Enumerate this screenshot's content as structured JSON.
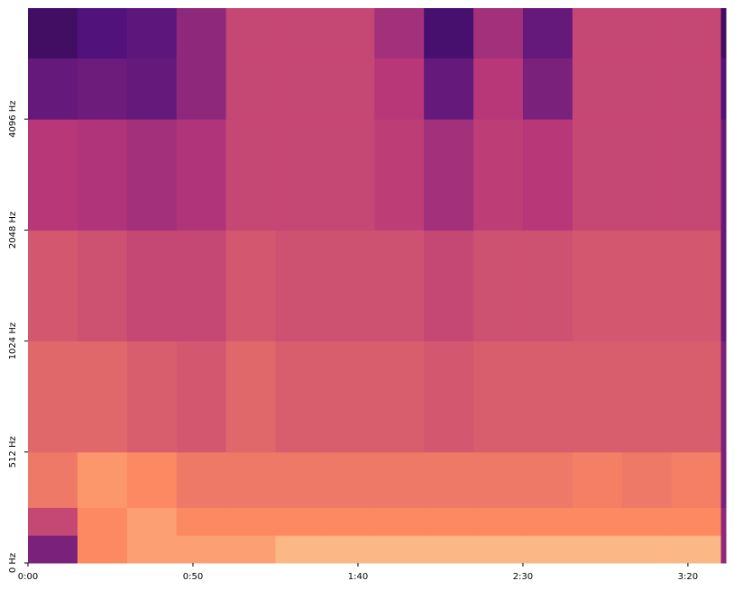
{
  "chart_data": {
    "type": "heatmap",
    "xbins": [
      0,
      15,
      30,
      45,
      60,
      75,
      90,
      105,
      120,
      135,
      150,
      165,
      180,
      195,
      210,
      211.5
    ],
    "ybins": [
      0,
      128,
      256,
      512,
      1024,
      2048,
      4096,
      6000,
      8192
    ],
    "z": [
      [
        0.35,
        0.75,
        0.8,
        0.8,
        0.8,
        0.85,
        0.85,
        0.85,
        0.85,
        0.85,
        0.85,
        0.85,
        0.85,
        0.85,
        0.4
      ],
      [
        0.55,
        0.75,
        0.8,
        0.75,
        0.75,
        0.75,
        0.75,
        0.75,
        0.75,
        0.75,
        0.75,
        0.75,
        0.75,
        0.75,
        0.4
      ],
      [
        0.7,
        0.78,
        0.75,
        0.7,
        0.7,
        0.7,
        0.7,
        0.7,
        0.7,
        0.7,
        0.7,
        0.72,
        0.7,
        0.72,
        0.35
      ],
      [
        0.65,
        0.65,
        0.62,
        0.6,
        0.65,
        0.62,
        0.62,
        0.62,
        0.6,
        0.62,
        0.62,
        0.62,
        0.62,
        0.62,
        0.35
      ],
      [
        0.6,
        0.58,
        0.55,
        0.55,
        0.6,
        0.58,
        0.58,
        0.58,
        0.55,
        0.58,
        0.58,
        0.6,
        0.6,
        0.6,
        0.3
      ],
      [
        0.5,
        0.48,
        0.45,
        0.48,
        0.55,
        0.55,
        0.55,
        0.52,
        0.45,
        0.52,
        0.5,
        0.55,
        0.55,
        0.55,
        0.3
      ],
      [
        0.3,
        0.32,
        0.3,
        0.4,
        0.55,
        0.55,
        0.55,
        0.5,
        0.3,
        0.5,
        0.35,
        0.55,
        0.55,
        0.55,
        0.25
      ],
      [
        0.2,
        0.25,
        0.28,
        0.4,
        0.55,
        0.55,
        0.55,
        0.45,
        0.22,
        0.45,
        0.3,
        0.55,
        0.55,
        0.55,
        0.2
      ]
    ],
    "colormap": [
      "#000004",
      "#51127c",
      "#b73779",
      "#fc8961",
      "#fcfdbf"
    ],
    "zlim": [
      0,
      1
    ],
    "xlim": [
      0,
      211.5
    ],
    "xticks": [
      {
        "value": 0,
        "label": "0:00"
      },
      {
        "value": 50,
        "label": "0:50"
      },
      {
        "value": 100,
        "label": "1:40"
      },
      {
        "value": 150,
        "label": "2:30"
      },
      {
        "value": 200,
        "label": "3:20"
      }
    ],
    "ylim": [
      0,
      8192
    ],
    "yscale": "symlog",
    "linthresh": 512,
    "yticks": [
      {
        "value": 0,
        "label": "0 Hz"
      },
      {
        "value": 512,
        "label": "512 Hz"
      },
      {
        "value": 1024,
        "label": "1024 Hz"
      },
      {
        "value": 2048,
        "label": "2048 Hz"
      },
      {
        "value": 4096,
        "label": "4096 Hz"
      }
    ]
  }
}
